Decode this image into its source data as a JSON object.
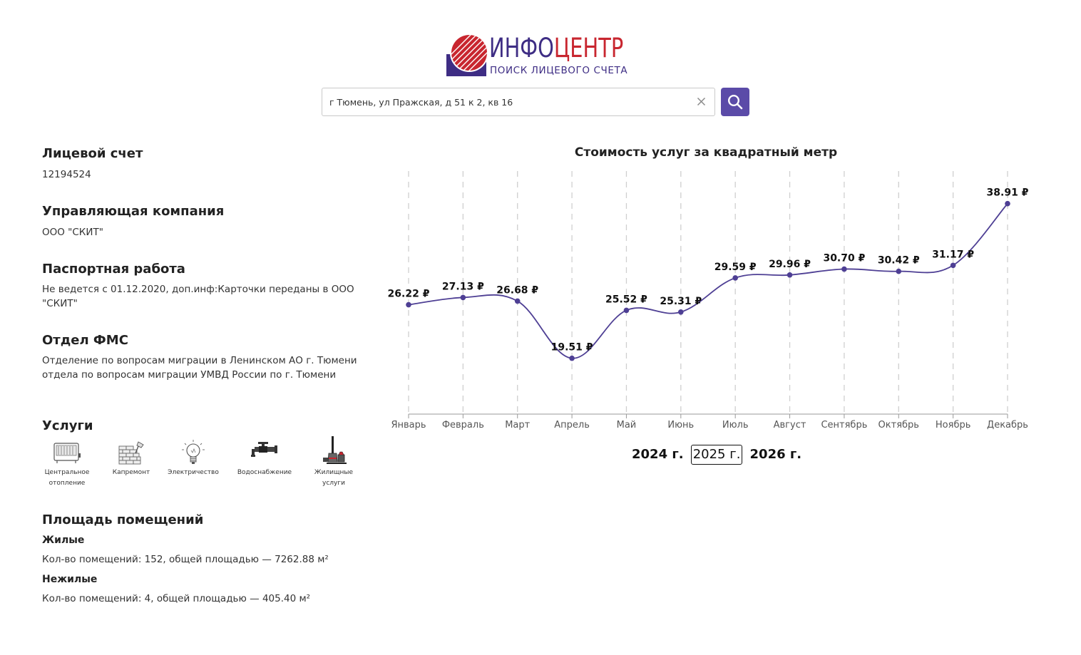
{
  "header": {
    "logo_part1": "ИНФО",
    "logo_part2": "ЦЕНТР",
    "logo_subtitle": "ПОИСК ЛИЦЕВОГО СЧЕТА"
  },
  "search": {
    "value": "г Тюмень, ул Пражская, д 51 к 2, кв 16",
    "placeholder": ""
  },
  "account": {
    "title": "Лицевой счет",
    "value": "12194524"
  },
  "management": {
    "title": "Управляющая компания",
    "value": "ООО \"СКИТ\""
  },
  "passport": {
    "title": "Паспортная работа",
    "value": "Не ведется с 01.12.2020, доп.инф:Карточки переданы в ООО \"СКИТ\""
  },
  "fms": {
    "title": "Отдел ФМС",
    "value": "Отделение по вопросам миграции в Ленинском АО г. Тюмени отдела по вопросам миграции УМВД России по г. Тюмени"
  },
  "services": {
    "title": "Услуги",
    "items": [
      {
        "label_line1": "Центральное",
        "label_line2": "отопление",
        "icon": "radiator-icon"
      },
      {
        "label_line1": "Капремонт",
        "label_line2": "",
        "icon": "brick-wall-icon"
      },
      {
        "label_line1": "Электричество",
        "label_line2": "",
        "icon": "lightbulb-icon"
      },
      {
        "label_line1": "Водоснабжение",
        "label_line2": "",
        "icon": "water-tap-icon"
      },
      {
        "label_line1": "Жилищные",
        "label_line2": "услуги",
        "icon": "cleaning-tools-icon"
      }
    ]
  },
  "area": {
    "title": "Площадь помещений",
    "residential_title": "Жилые",
    "residential_text": "Кол-во помещений: 152, общей площадью — 7262.88 м²",
    "nonresidential_title": "Нежилые",
    "nonresidential_text": "Кол-во помещений: 4, общей площадью — 405.40 м²"
  },
  "chart_data": {
    "type": "line",
    "title": "Стоимость услуг за квадратный метр",
    "categories": [
      "Январь",
      "Февраль",
      "Март",
      "Апрель",
      "Май",
      "Июнь",
      "Июль",
      "Август",
      "Сентябрь",
      "Октябрь",
      "Ноябрь",
      "Декабрь"
    ],
    "series": [
      {
        "values": [
          26.22,
          27.13,
          26.68,
          19.51,
          25.52,
          25.31,
          29.59,
          29.96,
          30.7,
          30.42,
          31.17,
          38.91
        ]
      }
    ],
    "labels": [
      "26.22 ₽",
      "27.13 ₽",
      "26.68 ₽",
      "19.51 ₽",
      "25.52 ₽",
      "25.31 ₽",
      "29.59 ₽",
      "29.96 ₽",
      "30.70 ₽",
      "30.42 ₽",
      "31.17 ₽",
      "38.91 ₽"
    ],
    "ylim": [
      12.5,
      43
    ],
    "vertical_grid": true,
    "line_color": "#4e3f94",
    "xlabel": "",
    "ylabel": ""
  },
  "years": {
    "items": [
      "2024 г.",
      "2025 г.",
      "2026 г."
    ],
    "active": "2025 г."
  }
}
